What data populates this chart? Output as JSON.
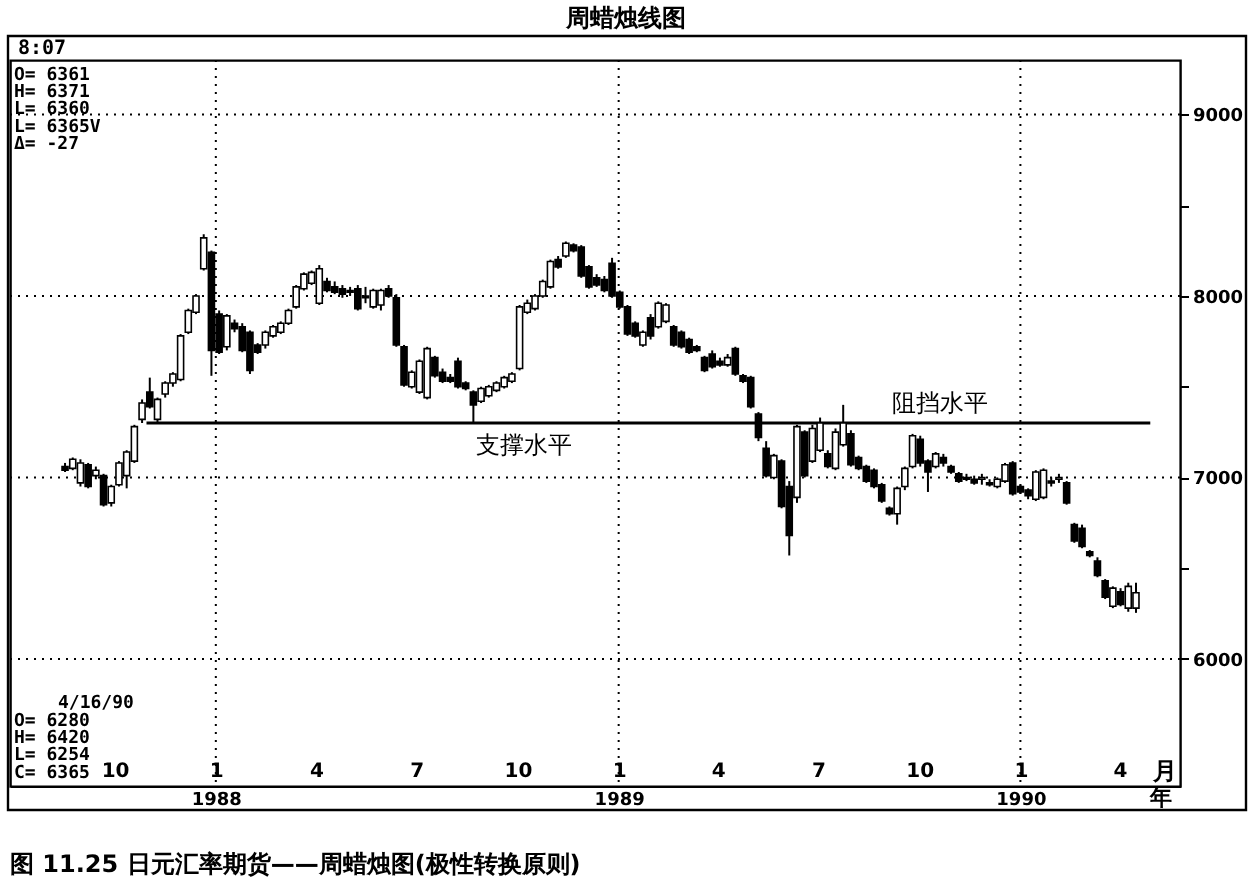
{
  "chart_data": {
    "type": "candlestick",
    "title": "周蜡烛线图",
    "color": "#000000",
    "x": [
      "1987-08-17",
      "1987-08-24",
      "1987-08-31",
      "1987-09-07",
      "1987-09-14",
      "1987-09-21",
      "1987-09-28",
      "1987-10-05",
      "1987-10-12",
      "1987-10-19",
      "1987-10-26",
      "1987-11-02",
      "1987-11-09",
      "1987-11-16",
      "1987-11-23",
      "1987-11-30",
      "1987-12-07",
      "1987-12-14",
      "1987-12-21",
      "1987-12-28",
      "1988-01-04",
      "1988-01-11",
      "1988-01-18",
      "1988-01-25",
      "1988-02-01",
      "1988-02-08",
      "1988-02-15",
      "1988-02-22",
      "1988-02-29",
      "1988-03-07",
      "1988-03-14",
      "1988-03-21",
      "1988-03-28",
      "1988-04-04",
      "1988-04-11",
      "1988-04-18",
      "1988-04-25",
      "1988-05-02",
      "1988-05-09",
      "1988-05-16",
      "1988-05-23",
      "1988-05-30",
      "1988-06-06",
      "1988-06-13",
      "1988-06-20",
      "1988-06-27",
      "1988-07-04",
      "1988-07-11",
      "1988-07-18",
      "1988-07-25",
      "1988-08-01",
      "1988-08-08",
      "1988-08-15",
      "1988-08-22",
      "1988-08-29",
      "1988-09-05",
      "1988-09-12",
      "1988-09-19",
      "1988-09-26",
      "1988-10-03",
      "1988-10-10",
      "1988-10-17",
      "1988-10-24",
      "1988-10-31",
      "1988-11-07",
      "1988-11-14",
      "1988-11-21",
      "1988-11-28",
      "1988-12-05",
      "1988-12-12",
      "1988-12-19",
      "1988-12-26",
      "1989-01-02",
      "1989-01-09",
      "1989-01-16",
      "1989-01-23",
      "1989-01-30",
      "1989-02-06",
      "1989-02-13",
      "1989-02-20",
      "1989-02-27",
      "1989-03-06",
      "1989-03-13",
      "1989-03-20",
      "1989-03-27",
      "1989-04-03",
      "1989-04-10",
      "1989-04-17",
      "1989-04-24",
      "1989-05-01",
      "1989-05-08",
      "1989-05-15",
      "1989-05-22",
      "1989-05-29",
      "1989-06-05",
      "1989-06-12",
      "1989-06-19",
      "1989-06-26",
      "1989-07-03",
      "1989-07-10",
      "1989-07-17",
      "1989-07-24",
      "1989-07-31",
      "1989-08-07",
      "1989-08-14",
      "1989-08-21",
      "1989-08-28",
      "1989-09-04",
      "1989-09-11",
      "1989-09-18",
      "1989-09-25",
      "1989-10-02",
      "1989-10-09",
      "1989-10-16",
      "1989-10-23",
      "1989-10-30",
      "1989-11-06",
      "1989-11-13",
      "1989-11-20",
      "1989-11-27",
      "1989-12-04",
      "1989-12-11",
      "1989-12-18",
      "1989-12-25",
      "1990-01-01",
      "1990-01-08",
      "1990-01-15",
      "1990-01-22",
      "1990-01-29",
      "1990-02-05",
      "1990-02-12",
      "1990-02-19",
      "1990-02-26",
      "1990-03-05",
      "1990-03-12",
      "1990-03-19",
      "1990-03-26",
      "1990-04-02",
      "1990-04-09",
      "1990-04-16"
    ],
    "ohlc": [
      [
        7060,
        7080,
        7030,
        7040
      ],
      [
        7050,
        7110,
        7040,
        7100
      ],
      [
        6970,
        7100,
        6950,
        7080
      ],
      [
        7070,
        7080,
        6940,
        6950
      ],
      [
        7010,
        7060,
        6990,
        7040
      ],
      [
        7010,
        7020,
        6840,
        6850
      ],
      [
        6860,
        6960,
        6840,
        6950
      ],
      [
        6960,
        7090,
        6950,
        7080
      ],
      [
        7010,
        7150,
        6940,
        7140
      ],
      [
        7090,
        7290,
        7080,
        7280
      ],
      [
        7320,
        7430,
        7300,
        7410
      ],
      [
        7470,
        7550,
        7380,
        7390
      ],
      [
        7320,
        7440,
        7300,
        7430
      ],
      [
        7460,
        7530,
        7440,
        7520
      ],
      [
        7520,
        7580,
        7500,
        7570
      ],
      [
        7540,
        7790,
        7530,
        7780
      ],
      [
        7800,
        7930,
        7790,
        7920
      ],
      [
        7910,
        8010,
        7900,
        8000
      ],
      [
        8150,
        8340,
        8140,
        8320
      ],
      [
        8240,
        8250,
        7560,
        7700
      ],
      [
        7900,
        7920,
        7680,
        7690
      ],
      [
        7720,
        7900,
        7700,
        7890
      ],
      [
        7850,
        7870,
        7800,
        7820
      ],
      [
        7830,
        7850,
        7690,
        7700
      ],
      [
        7800,
        7810,
        7570,
        7590
      ],
      [
        7730,
        7740,
        7680,
        7690
      ],
      [
        7730,
        7810,
        7710,
        7800
      ],
      [
        7780,
        7840,
        7770,
        7830
      ],
      [
        7800,
        7860,
        7790,
        7850
      ],
      [
        7850,
        7930,
        7840,
        7920
      ],
      [
        7940,
        8060,
        7930,
        8050
      ],
      [
        8040,
        8130,
        8030,
        8120
      ],
      [
        8070,
        8140,
        8060,
        8130
      ],
      [
        7960,
        8170,
        7950,
        8150
      ],
      [
        8080,
        8100,
        8020,
        8030
      ],
      [
        8050,
        8080,
        8010,
        8020
      ],
      [
        8040,
        8060,
        7990,
        8010
      ],
      [
        8030,
        8050,
        8000,
        8020
      ],
      [
        8040,
        8060,
        7920,
        7930
      ],
      [
        8000,
        8050,
        7960,
        7990
      ],
      [
        7940,
        8040,
        7930,
        8030
      ],
      [
        7950,
        8040,
        7920,
        8030
      ],
      [
        8040,
        8060,
        7990,
        8000
      ],
      [
        7990,
        8010,
        7720,
        7730
      ],
      [
        7720,
        7730,
        7500,
        7510
      ],
      [
        7500,
        7590,
        7490,
        7580
      ],
      [
        7470,
        7650,
        7460,
        7640
      ],
      [
        7440,
        7720,
        7430,
        7710
      ],
      [
        7660,
        7670,
        7550,
        7560
      ],
      [
        7580,
        7600,
        7520,
        7530
      ],
      [
        7550,
        7570,
        7520,
        7530
      ],
      [
        7640,
        7660,
        7490,
        7500
      ],
      [
        7520,
        7530,
        7480,
        7490
      ],
      [
        7470,
        7480,
        7300,
        7400
      ],
      [
        7420,
        7500,
        7410,
        7490
      ],
      [
        7450,
        7510,
        7440,
        7500
      ],
      [
        7480,
        7530,
        7470,
        7520
      ],
      [
        7500,
        7560,
        7490,
        7550
      ],
      [
        7530,
        7580,
        7520,
        7570
      ],
      [
        7600,
        7950,
        7590,
        7940
      ],
      [
        7910,
        7980,
        7900,
        7960
      ],
      [
        7930,
        8010,
        7920,
        8000
      ],
      [
        8000,
        8090,
        7990,
        8080
      ],
      [
        8050,
        8200,
        8040,
        8190
      ],
      [
        8200,
        8220,
        8150,
        8160
      ],
      [
        8220,
        8300,
        8210,
        8290
      ],
      [
        8280,
        8290,
        8240,
        8250
      ],
      [
        8270,
        8280,
        8100,
        8110
      ],
      [
        8160,
        8170,
        8040,
        8050
      ],
      [
        8100,
        8120,
        8050,
        8060
      ],
      [
        8090,
        8110,
        8020,
        8030
      ],
      [
        8180,
        8210,
        7990,
        8000
      ],
      [
        8020,
        8030,
        7930,
        7940
      ],
      [
        7940,
        7950,
        7780,
        7790
      ],
      [
        7850,
        7860,
        7770,
        7780
      ],
      [
        7730,
        7810,
        7720,
        7800
      ],
      [
        7880,
        7900,
        7760,
        7780
      ],
      [
        7830,
        7970,
        7820,
        7960
      ],
      [
        7860,
        7960,
        7850,
        7950
      ],
      [
        7830,
        7840,
        7720,
        7730
      ],
      [
        7800,
        7810,
        7710,
        7720
      ],
      [
        7760,
        7770,
        7680,
        7690
      ],
      [
        7720,
        7730,
        7690,
        7700
      ],
      [
        7660,
        7670,
        7580,
        7590
      ],
      [
        7680,
        7700,
        7600,
        7610
      ],
      [
        7640,
        7660,
        7610,
        7620
      ],
      [
        7620,
        7680,
        7610,
        7660
      ],
      [
        7710,
        7720,
        7560,
        7570
      ],
      [
        7560,
        7570,
        7520,
        7530
      ],
      [
        7550,
        7560,
        7380,
        7390
      ],
      [
        7350,
        7360,
        7200,
        7220
      ],
      [
        7160,
        7200,
        7000,
        7010
      ],
      [
        7000,
        7130,
        6990,
        7120
      ],
      [
        7090,
        7100,
        6830,
        6840
      ],
      [
        6950,
        6980,
        6570,
        6680
      ],
      [
        6890,
        7290,
        6860,
        7280
      ],
      [
        7250,
        7260,
        7000,
        7010
      ],
      [
        7090,
        7290,
        7080,
        7270
      ],
      [
        7150,
        7330,
        7140,
        7300
      ],
      [
        7130,
        7150,
        7050,
        7060
      ],
      [
        7050,
        7270,
        7040,
        7250
      ],
      [
        7180,
        7400,
        7170,
        7300
      ],
      [
        7240,
        7260,
        7060,
        7070
      ],
      [
        7110,
        7120,
        7040,
        7050
      ],
      [
        7060,
        7070,
        6970,
        6980
      ],
      [
        7040,
        7050,
        6940,
        6950
      ],
      [
        6960,
        6970,
        6860,
        6870
      ],
      [
        6830,
        6840,
        6790,
        6800
      ],
      [
        6800,
        6950,
        6740,
        6940
      ],
      [
        6950,
        7060,
        6930,
        7050
      ],
      [
        7060,
        7240,
        7050,
        7230
      ],
      [
        7210,
        7230,
        7060,
        7080
      ],
      [
        7090,
        7100,
        6920,
        7030
      ],
      [
        7060,
        7140,
        7050,
        7130
      ],
      [
        7110,
        7130,
        7060,
        7080
      ],
      [
        7060,
        7070,
        7020,
        7030
      ],
      [
        7020,
        7030,
        6970,
        6980
      ],
      [
        7000,
        7020,
        6980,
        6990
      ],
      [
        6990,
        7010,
        6960,
        6970
      ],
      [
        6990,
        7020,
        6960,
        7000
      ],
      [
        6970,
        6990,
        6950,
        6960
      ],
      [
        6950,
        7000,
        6940,
        6990
      ],
      [
        6980,
        7080,
        6970,
        7070
      ],
      [
        7080,
        7090,
        6900,
        6910
      ],
      [
        6950,
        6960,
        6910,
        6920
      ],
      [
        6930,
        6940,
        6880,
        6900
      ],
      [
        6880,
        7040,
        6870,
        7030
      ],
      [
        6890,
        7050,
        6880,
        7040
      ],
      [
        6980,
        7000,
        6950,
        6970
      ],
      [
        6990,
        7020,
        6970,
        7000
      ],
      [
        6970,
        6980,
        6850,
        6860
      ],
      [
        6740,
        6750,
        6640,
        6650
      ],
      [
        6720,
        6740,
        6610,
        6620
      ],
      [
        6590,
        6600,
        6560,
        6570
      ],
      [
        6540,
        6560,
        6450,
        6460
      ],
      [
        6430,
        6440,
        6330,
        6340
      ],
      [
        6290,
        6400,
        6280,
        6390
      ],
      [
        6370,
        6390,
        6290,
        6300
      ],
      [
        6280,
        6420,
        6260,
        6400
      ],
      [
        6280,
        6420,
        6254,
        6365
      ]
    ],
    "series": [
      {
        "type": "line",
        "color": "#000000",
        "x": [
          "1987-10-30",
          "1990-04-29"
        ],
        "values": [
          7300,
          7300
        ]
      }
    ],
    "xlim": [
      "1987-06-28",
      "1990-05-26"
    ],
    "xticks": [
      {
        "value": "1987-10-01",
        "label": "10"
      },
      {
        "value": "1988-01-01",
        "label": "1"
      },
      {
        "value": "1988-04-01",
        "label": "4"
      },
      {
        "value": "1988-07-01",
        "label": "7"
      },
      {
        "value": "1988-10-01",
        "label": "10"
      },
      {
        "value": "1989-01-01",
        "label": "1"
      },
      {
        "value": "1989-04-01",
        "label": "4"
      },
      {
        "value": "1989-07-01",
        "label": "7"
      },
      {
        "value": "1989-10-01",
        "label": "10"
      },
      {
        "value": "1990-01-01",
        "label": "1"
      },
      {
        "value": "1990-04-01",
        "label": "4"
      }
    ],
    "xlabel": "月",
    "x2lim": [
      "1987-06-28",
      "1990-05-26"
    ],
    "x2ticks": [
      {
        "value": "1988-01-01",
        "label": "1988"
      },
      {
        "value": "1989-01-01",
        "label": "1989"
      },
      {
        "value": "1990-01-01",
        "label": "1990"
      }
    ],
    "x2label": "年",
    "ylim": [
      5300,
      9300
    ],
    "yticks": [
      6000,
      {
        "value": 6500,
        "label": null
      },
      7000,
      {
        "value": 7500,
        "label": null
      },
      8000,
      {
        "value": 8500,
        "label": null
      },
      9000
    ],
    "grid": true,
    "annotations": [
      "8:07",
      "O= 6361\nH= 6371\nL= 6360\nL= 6365V\nΔ= -27",
      "4/16/90",
      "O= 6280\nH= 6420\nL= 6254\nC= 6365",
      {
        "text": "支撑水平",
        "x": "1988-10-07",
        "y": 7300
      },
      {
        "text": "阻挡水平",
        "x": "1989-10-20",
        "y": 7300
      },
      "图 11.25   日元汇率期货——周蜡烛图(极性转换原则)"
    ]
  }
}
